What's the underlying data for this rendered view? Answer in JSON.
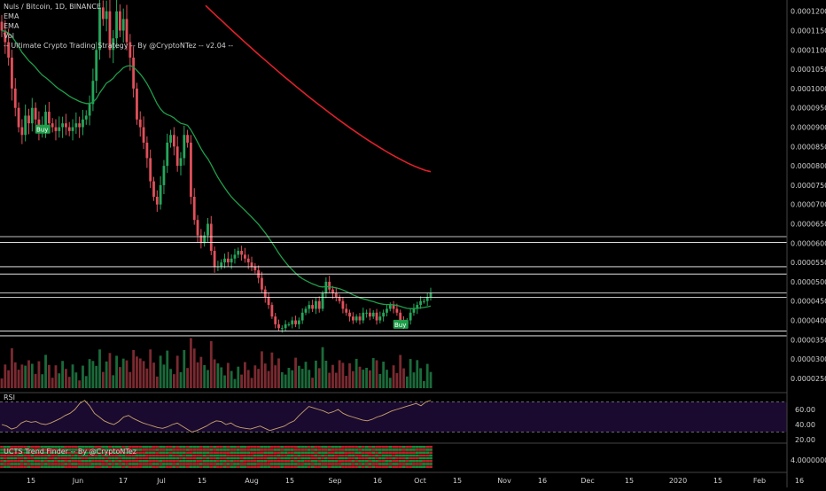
{
  "header": {
    "symbol_line": "Nuls / Bitcoin, 1D, BINANCE",
    "lines": [
      "EMA",
      "EMA",
      "Vol",
      "-- Ultimate Crypto Trading Strategy -- By @CryptoNTez -- v2.04 --"
    ]
  },
  "chart_data": [
    {
      "type": "candlestick",
      "title": "Nuls / Bitcoin, 1D, BINANCE",
      "ylim": [
        2.2e-05,
        0.000122
      ],
      "y_ticks": [
        "0.00012000",
        "0.00011500",
        "0.00011000",
        "0.00010500",
        "0.00010000",
        "0.00009500",
        "0.00009000",
        "0.00008500",
        "0.00008000",
        "0.00007500",
        "0.00007000",
        "0.00006500",
        "0.00006000",
        "0.00005500",
        "0.00005000",
        "0.00004500",
        "0.00004000",
        "0.00003500",
        "0.00003000",
        "0.00002500"
      ],
      "x_ticks": [
        "15",
        "Jun",
        "17",
        "Jul",
        "15",
        "Aug",
        "15",
        "Sep",
        "16",
        "Oct",
        "15",
        "Nov",
        "16",
        "Dec",
        "15",
        "2020",
        "15",
        "Feb",
        "16"
      ],
      "horizontal_levels": [
        {
          "value": 6.168e-05,
          "label": "0.00006168",
          "color": "#ffffff"
        },
        {
          "value": 6.02e-05,
          "label": "0.00006020",
          "color": "#ffffff"
        },
        {
          "value": 5.389e-05,
          "label": "0.00005389",
          "color": "#ffffff"
        },
        {
          "value": 5.2e-05,
          "label": "0.00005200",
          "color": "#ffffff"
        },
        {
          "value": 4.714e-05,
          "label": "0.00004714",
          "color": "#ffffff"
        },
        {
          "value": 4.599e-05,
          "label": "0.00004599",
          "color": "#ffffff"
        },
        {
          "value": 3.727e-05,
          "label": "0.00003727",
          "color": "#ffffff"
        },
        {
          "value": 3.6e-05,
          "label": "0.00003600",
          "color": "#ffffff"
        }
      ],
      "signals": [
        {
          "label": "Buy",
          "date_index": 12,
          "price": 8.95e-05
        },
        {
          "label": "Buy",
          "date_index": 118,
          "price": 3.9e-05
        }
      ],
      "ema_fast": {
        "color": "#1f9e4a"
      },
      "ema_slow": {
        "color": "#e0202a",
        "start_value": 0.0001215,
        "end_value": 7.85e-05
      },
      "candle_colors": {
        "up": "#26a65b",
        "down": "#e0505a"
      },
      "close_series": [
        0.000115,
        0.000112,
        0.000108,
        0.0001,
        9.5e-05,
        9e-05,
        8.8e-05,
        9.3e-05,
        9.1e-05,
        9.5e-05,
        9.2e-05,
        8.9e-05,
        9e-05,
        9.4e-05,
        9.1e-05,
        9e-05,
        8.9e-05,
        9e-05,
        9.1e-05,
        9e-05,
        8.9e-05,
        9e-05,
        9.1e-05,
        9e-05,
        9.2e-05,
        9.3e-05,
        9.6e-05,
        0.000102,
        0.00011,
        0.000121,
        0.000118,
        0.00012,
        0.00011,
        0.000113,
        0.00012,
        0.000115,
        0.000118,
        0.000112,
        0.000108,
        0.0001,
        9.2e-05,
        9e-05,
        8.6e-05,
        8.2e-05,
        7.6e-05,
        7.2e-05,
        7e-05,
        7.5e-05,
        8e-05,
        8.6e-05,
        8.8e-05,
        8.5e-05,
        8e-05,
        8.2e-05,
        8.8e-05,
        8.6e-05,
        7.2e-05,
        6.6e-05,
        6.2e-05,
        6e-05,
        6.2e-05,
        6.5e-05,
        5.8e-05,
        5.4e-05,
        5.4e-05,
        5.5e-05,
        5.6e-05,
        5.5e-05,
        5.6e-05,
        5.7e-05,
        5.8e-05,
        5.7e-05,
        5.6e-05,
        5.5e-05,
        5.4e-05,
        5.3e-05,
        5.1e-05,
        4.8e-05,
        4.6e-05,
        4.4e-05,
        4.1e-05,
        3.9e-05,
        3.8e-05,
        3.8e-05,
        3.9e-05,
        3.9e-05,
        4e-05,
        3.9e-05,
        4e-05,
        4.2e-05,
        4.3e-05,
        4.4e-05,
        4.3e-05,
        4.5e-05,
        4.3e-05,
        4.7e-05,
        5e-05,
        4.8e-05,
        4.7e-05,
        4.6e-05,
        4.5e-05,
        4.3e-05,
        4.2e-05,
        4.1e-05,
        4e-05,
        4.1e-05,
        4e-05,
        4.2e-05,
        4.2e-05,
        4.1e-05,
        4.2e-05,
        4e-05,
        4.1e-05,
        4.2e-05,
        4.3e-05,
        4.4e-05,
        4.3e-05,
        4.2e-05,
        4e-05,
        3.9e-05,
        4e-05,
        4.2e-05,
        4.3e-05,
        4.4e-05,
        4.5e-05,
        4.5e-05,
        4.6e-05,
        4.7e-05
      ]
    },
    {
      "type": "line",
      "title": "RSI",
      "ylim": [
        20,
        80
      ],
      "y_ticks": [
        "60.00",
        "40.00",
        "20.00"
      ],
      "bands": [
        70,
        30
      ],
      "series_color": "#c8a36a",
      "values": [
        40,
        38,
        34,
        36,
        42,
        45,
        43,
        44,
        41,
        40,
        42,
        45,
        48,
        52,
        55,
        60,
        68,
        72,
        65,
        55,
        50,
        45,
        42,
        40,
        44,
        50,
        52,
        48,
        45,
        42,
        40,
        38,
        36,
        35,
        37,
        40,
        42,
        38,
        34,
        30,
        32,
        35,
        38,
        42,
        45,
        44,
        40,
        42,
        38,
        36,
        35,
        34,
        36,
        38,
        35,
        32,
        34,
        36,
        38,
        42,
        45,
        52,
        58,
        64,
        62,
        60,
        58,
        55,
        57,
        60,
        55,
        52,
        50,
        48,
        46,
        45,
        47,
        50,
        52,
        55,
        58,
        60,
        62,
        64,
        66,
        68,
        65,
        70,
        72
      ]
    },
    {
      "type": "heatmap",
      "title": "UCTS Trend Finder -- By @CryptoNTez",
      "y_ticks": [
        "4.00000000"
      ],
      "colors": [
        "#1b8a3a",
        "#c0202a"
      ]
    }
  ]
}
